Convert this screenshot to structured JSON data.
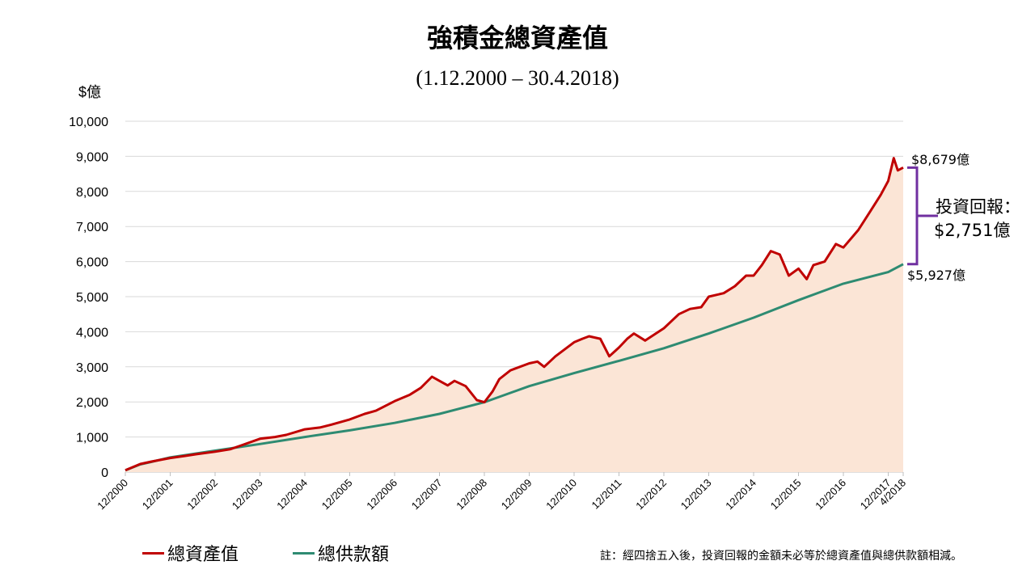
{
  "chart_data": {
    "type": "area",
    "title": "強積金總資產值",
    "subtitle": "(1.12.2000 – 30.4.2018)",
    "ylabel": "$億",
    "ylim": [
      0,
      10000
    ],
    "yticks": [
      "0",
      "1,000",
      "2,000",
      "3,000",
      "4,000",
      "5,000",
      "6,000",
      "7,000",
      "8,000",
      "9,000",
      "10,000"
    ],
    "xlim": [
      2000.917,
      2018.25
    ],
    "xticks": [
      {
        "label": "12/2000",
        "x": 2000.917
      },
      {
        "label": "12/2001",
        "x": 2001.917
      },
      {
        "label": "12/2002",
        "x": 2002.917
      },
      {
        "label": "12/2003",
        "x": 2003.917
      },
      {
        "label": "12/2004",
        "x": 2004.917
      },
      {
        "label": "12/2005",
        "x": 2005.917
      },
      {
        "label": "12/2006",
        "x": 2006.917
      },
      {
        "label": "12/2007",
        "x": 2007.917
      },
      {
        "label": "12/2008",
        "x": 2008.917
      },
      {
        "label": "12/2009",
        "x": 2009.917
      },
      {
        "label": "12/2010",
        "x": 2010.917
      },
      {
        "label": "12/2011",
        "x": 2011.917
      },
      {
        "label": "12/2012",
        "x": 2012.917
      },
      {
        "label": "12/2013",
        "x": 2013.917
      },
      {
        "label": "12/2014",
        "x": 2014.917
      },
      {
        "label": "12/2015",
        "x": 2015.917
      },
      {
        "label": "12/2016",
        "x": 2016.917
      },
      {
        "label": "12/2017",
        "x": 2017.917
      },
      {
        "label": "4/2018",
        "x": 2018.25
      }
    ],
    "series": [
      {
        "name": "總資產值",
        "color": "#c00000",
        "points": [
          [
            2000.917,
            50
          ],
          [
            2001.25,
            230
          ],
          [
            2001.5,
            300
          ],
          [
            2001.917,
            400
          ],
          [
            2002.25,
            460
          ],
          [
            2002.5,
            510
          ],
          [
            2002.917,
            580
          ],
          [
            2003.25,
            650
          ],
          [
            2003.5,
            760
          ],
          [
            2003.917,
            950
          ],
          [
            2004.25,
            1000
          ],
          [
            2004.5,
            1060
          ],
          [
            2004.917,
            1220
          ],
          [
            2005.25,
            1270
          ],
          [
            2005.5,
            1350
          ],
          [
            2005.917,
            1500
          ],
          [
            2006.25,
            1660
          ],
          [
            2006.5,
            1750
          ],
          [
            2006.917,
            2020
          ],
          [
            2007.25,
            2200
          ],
          [
            2007.5,
            2400
          ],
          [
            2007.75,
            2720
          ],
          [
            2007.917,
            2600
          ],
          [
            2008.1,
            2470
          ],
          [
            2008.25,
            2600
          ],
          [
            2008.5,
            2450
          ],
          [
            2008.75,
            2050
          ],
          [
            2008.917,
            1990
          ],
          [
            2009.1,
            2300
          ],
          [
            2009.25,
            2650
          ],
          [
            2009.5,
            2900
          ],
          [
            2009.917,
            3100
          ],
          [
            2010.1,
            3150
          ],
          [
            2010.25,
            3000
          ],
          [
            2010.5,
            3300
          ],
          [
            2010.917,
            3700
          ],
          [
            2011.1,
            3800
          ],
          [
            2011.25,
            3870
          ],
          [
            2011.5,
            3800
          ],
          [
            2011.7,
            3300
          ],
          [
            2011.917,
            3550
          ],
          [
            2012.1,
            3800
          ],
          [
            2012.25,
            3950
          ],
          [
            2012.5,
            3750
          ],
          [
            2012.917,
            4100
          ],
          [
            2013.25,
            4500
          ],
          [
            2013.5,
            4650
          ],
          [
            2013.75,
            4700
          ],
          [
            2013.917,
            5000
          ],
          [
            2014.25,
            5100
          ],
          [
            2014.5,
            5300
          ],
          [
            2014.75,
            5600
          ],
          [
            2014.917,
            5600
          ],
          [
            2015.1,
            5900
          ],
          [
            2015.3,
            6300
          ],
          [
            2015.5,
            6200
          ],
          [
            2015.7,
            5600
          ],
          [
            2015.917,
            5800
          ],
          [
            2016.1,
            5500
          ],
          [
            2016.25,
            5900
          ],
          [
            2016.5,
            6000
          ],
          [
            2016.75,
            6500
          ],
          [
            2016.917,
            6400
          ],
          [
            2017.25,
            6900
          ],
          [
            2017.5,
            7400
          ],
          [
            2017.75,
            7900
          ],
          [
            2017.917,
            8300
          ],
          [
            2018.04,
            8950
          ],
          [
            2018.13,
            8600
          ],
          [
            2018.25,
            8679
          ]
        ]
      },
      {
        "name": "總供款額",
        "color": "#2e8b72",
        "points": [
          [
            2000.917,
            50
          ],
          [
            2001.25,
            220
          ],
          [
            2001.5,
            290
          ],
          [
            2001.917,
            420
          ],
          [
            2002.917,
            610
          ],
          [
            2003.917,
            800
          ],
          [
            2004.917,
            1000
          ],
          [
            2005.917,
            1190
          ],
          [
            2006.917,
            1400
          ],
          [
            2007.917,
            1660
          ],
          [
            2008.917,
            1990
          ],
          [
            2009.917,
            2450
          ],
          [
            2010.917,
            2820
          ],
          [
            2011.917,
            3170
          ],
          [
            2012.917,
            3530
          ],
          [
            2013.917,
            3950
          ],
          [
            2014.917,
            4400
          ],
          [
            2015.917,
            4900
          ],
          [
            2016.917,
            5370
          ],
          [
            2017.917,
            5700
          ],
          [
            2018.25,
            5927
          ]
        ]
      }
    ],
    "annotations": {
      "total_value_label": "$8,679億",
      "contribution_label": "$5,927億",
      "return_line1": "投資回報：",
      "return_line2": "$2,751億"
    },
    "fill_color": "#fbe5d6",
    "bracket_color": "#7030a0"
  },
  "legend": {
    "total_label": "總資產值",
    "contrib_label": "總供款額"
  },
  "note": "註：經四捨五入後，投資回報的金額未必等於總資產值與總供款額相減。"
}
